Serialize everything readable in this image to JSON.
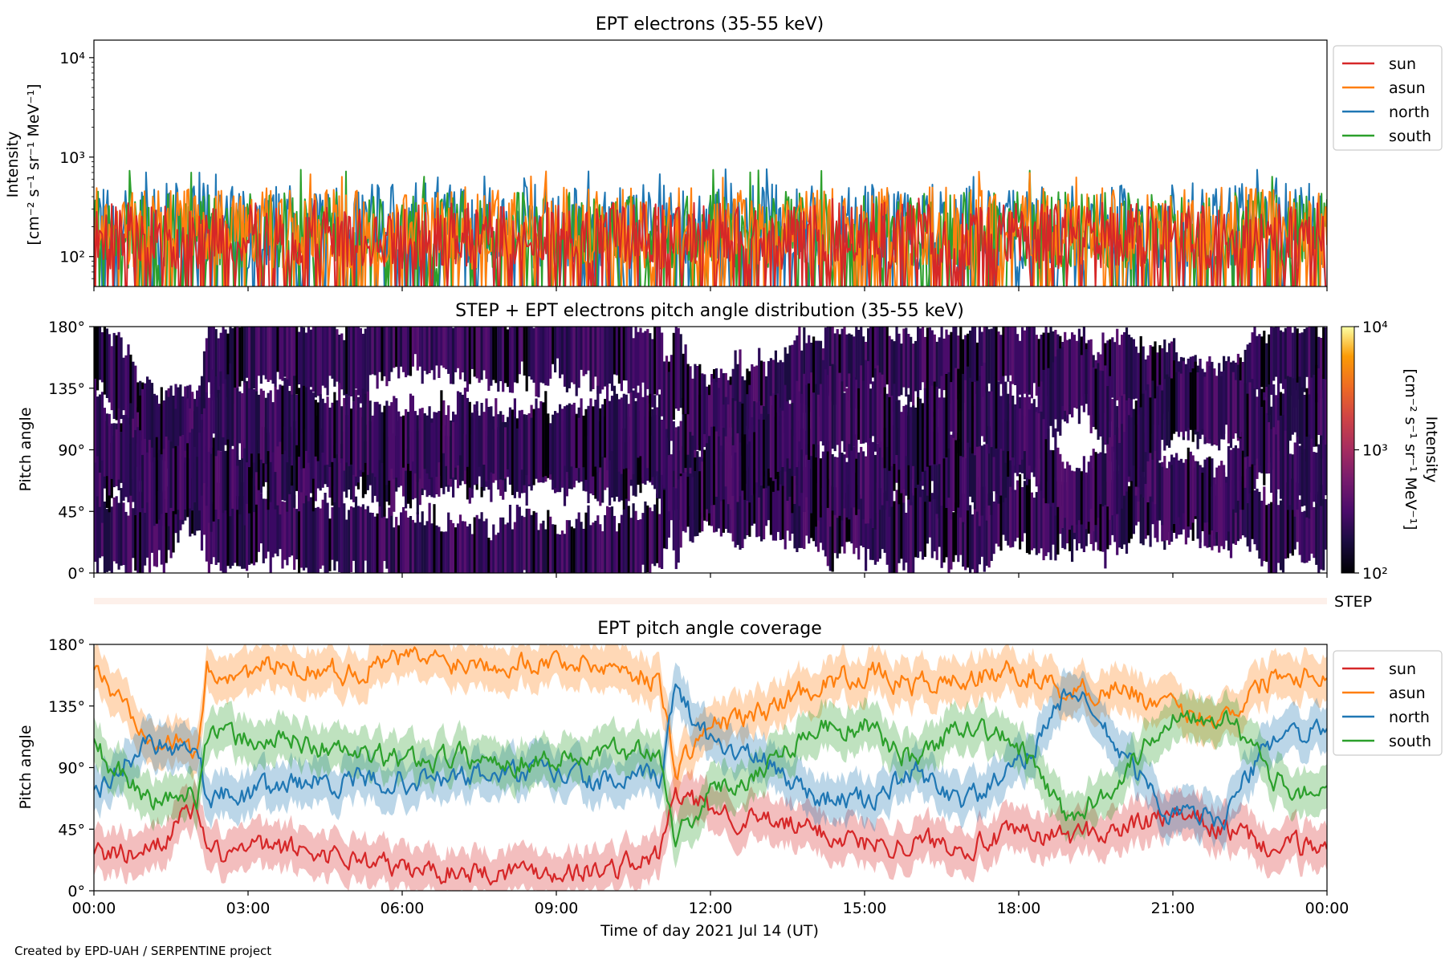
{
  "footer": "Created by EPD-UAH / SERPENTINE project",
  "colors": {
    "sun": "#d62728",
    "asun": "#ff7f0e",
    "north": "#1f77b4",
    "south": "#2ca02c"
  },
  "chart_data": [
    {
      "id": "intensity",
      "type": "line",
      "title": "EPT electrons (35-55 keV)",
      "ylabel_line1": "Intensity",
      "ylabel_line2": "[cm⁻² s⁻¹ sr⁻¹ MeV⁻¹]",
      "yscale": "log",
      "ylim": [
        50,
        15000
      ],
      "yticks": [
        {
          "v": 100,
          "label": "10²"
        },
        {
          "v": 1000,
          "label": "10³"
        },
        {
          "v": 10000,
          "label": "10⁴"
        }
      ],
      "xlim_hours": [
        0,
        24
      ],
      "legend_position": "outside-right",
      "series": [
        {
          "name": "north",
          "color": "#1f77b4",
          "typical": [
            50,
            550
          ],
          "max": 760
        },
        {
          "name": "south",
          "color": "#2ca02c",
          "typical": [
            50,
            450
          ],
          "max": 770
        },
        {
          "name": "asun",
          "color": "#ff7f0e",
          "typical": [
            50,
            500
          ],
          "max": 720
        },
        {
          "name": "sun",
          "color": "#d62728",
          "typical": [
            50,
            350
          ],
          "max": 400
        }
      ],
      "legend": [
        "sun",
        "asun",
        "north",
        "south"
      ]
    },
    {
      "id": "pad",
      "type": "heatmap",
      "title": "STEP + EPT electrons pitch angle distribution (35-55 keV)",
      "ylabel": "Pitch angle",
      "ylim": [
        0,
        180
      ],
      "yticks": [
        "0°",
        "45°",
        "90°",
        "135°",
        "180°"
      ],
      "colorbar": {
        "label_line1": "Intensity",
        "label_line2": "[cm⁻² s⁻¹ sr⁻¹ MeV⁻¹]",
        "scale": "log",
        "range": [
          100,
          10000
        ],
        "ticks": [
          "10²",
          "10³",
          "10⁴"
        ],
        "colormap": "inferno"
      },
      "step_strip_label": "STEP"
    },
    {
      "id": "coverage",
      "type": "line",
      "title": "EPT pitch angle coverage",
      "ylabel": "Pitch angle",
      "ylim": [
        0,
        180
      ],
      "yticks": [
        "0°",
        "45°",
        "90°",
        "135°",
        "180°"
      ],
      "xlabel": "Time of day 2021 Jul 14 (UT)",
      "xticks": [
        "00:00",
        "03:00",
        "06:00",
        "09:00",
        "12:00",
        "15:00",
        "18:00",
        "21:00",
        "00:00"
      ],
      "shaded_band": "yes",
      "legend_position": "outside-right",
      "legend": [
        "sun",
        "asun",
        "north",
        "south"
      ],
      "series": [
        {
          "name": "sun",
          "color": "#d62728",
          "hours": [
            0,
            1,
            2,
            2.2,
            3,
            4,
            5,
            6,
            7,
            8,
            9,
            10,
            11,
            11.3,
            12,
            13,
            14,
            15,
            16,
            17,
            18,
            19,
            20,
            21,
            22,
            23,
            24
          ],
          "values": [
            25,
            30,
            60,
            25,
            30,
            30,
            25,
            15,
            15,
            15,
            15,
            15,
            25,
            70,
            60,
            50,
            45,
            35,
            35,
            35,
            40,
            40,
            45,
            55,
            45,
            30,
            35
          ]
        },
        {
          "name": "asun",
          "color": "#ff7f0e",
          "hours": [
            0,
            1,
            2,
            2.2,
            3,
            4,
            5,
            6,
            7,
            8,
            9,
            10,
            11,
            11.3,
            12,
            13,
            14,
            15,
            16,
            17,
            18,
            19,
            20,
            21,
            22,
            23,
            24
          ],
          "values": [
            160,
            120,
            100,
            160,
            160,
            165,
            160,
            170,
            168,
            168,
            168,
            165,
            155,
            90,
            120,
            130,
            150,
            160,
            150,
            155,
            160,
            145,
            150,
            130,
            128,
            160,
            160
          ]
        },
        {
          "name": "north",
          "color": "#1f77b4",
          "hours": [
            0,
            1,
            2,
            2.2,
            3,
            4,
            5,
            6,
            7,
            8,
            9,
            10,
            11,
            11.3,
            12,
            13,
            14,
            15,
            16,
            17,
            18,
            19,
            20,
            21,
            22,
            23,
            24
          ],
          "values": [
            70,
            110,
            105,
            70,
            70,
            80,
            80,
            80,
            82,
            85,
            85,
            78,
            82,
            145,
            110,
            95,
            70,
            65,
            85,
            65,
            90,
            150,
            100,
            55,
            55,
            115,
            115
          ]
        },
        {
          "name": "south",
          "color": "#2ca02c",
          "hours": [
            0,
            1,
            2,
            2.2,
            3,
            4,
            5,
            6,
            7,
            8,
            9,
            10,
            11,
            11.3,
            12,
            13,
            14,
            15,
            16,
            17,
            18,
            19,
            20,
            21,
            22,
            23,
            24
          ],
          "values": [
            105,
            65,
            70,
            115,
            110,
            110,
            100,
            95,
            98,
            95,
            97,
            100,
            105,
            40,
            70,
            90,
            120,
            120,
            95,
            125,
            105,
            50,
            85,
            130,
            130,
            80,
            70
          ]
        }
      ]
    }
  ]
}
